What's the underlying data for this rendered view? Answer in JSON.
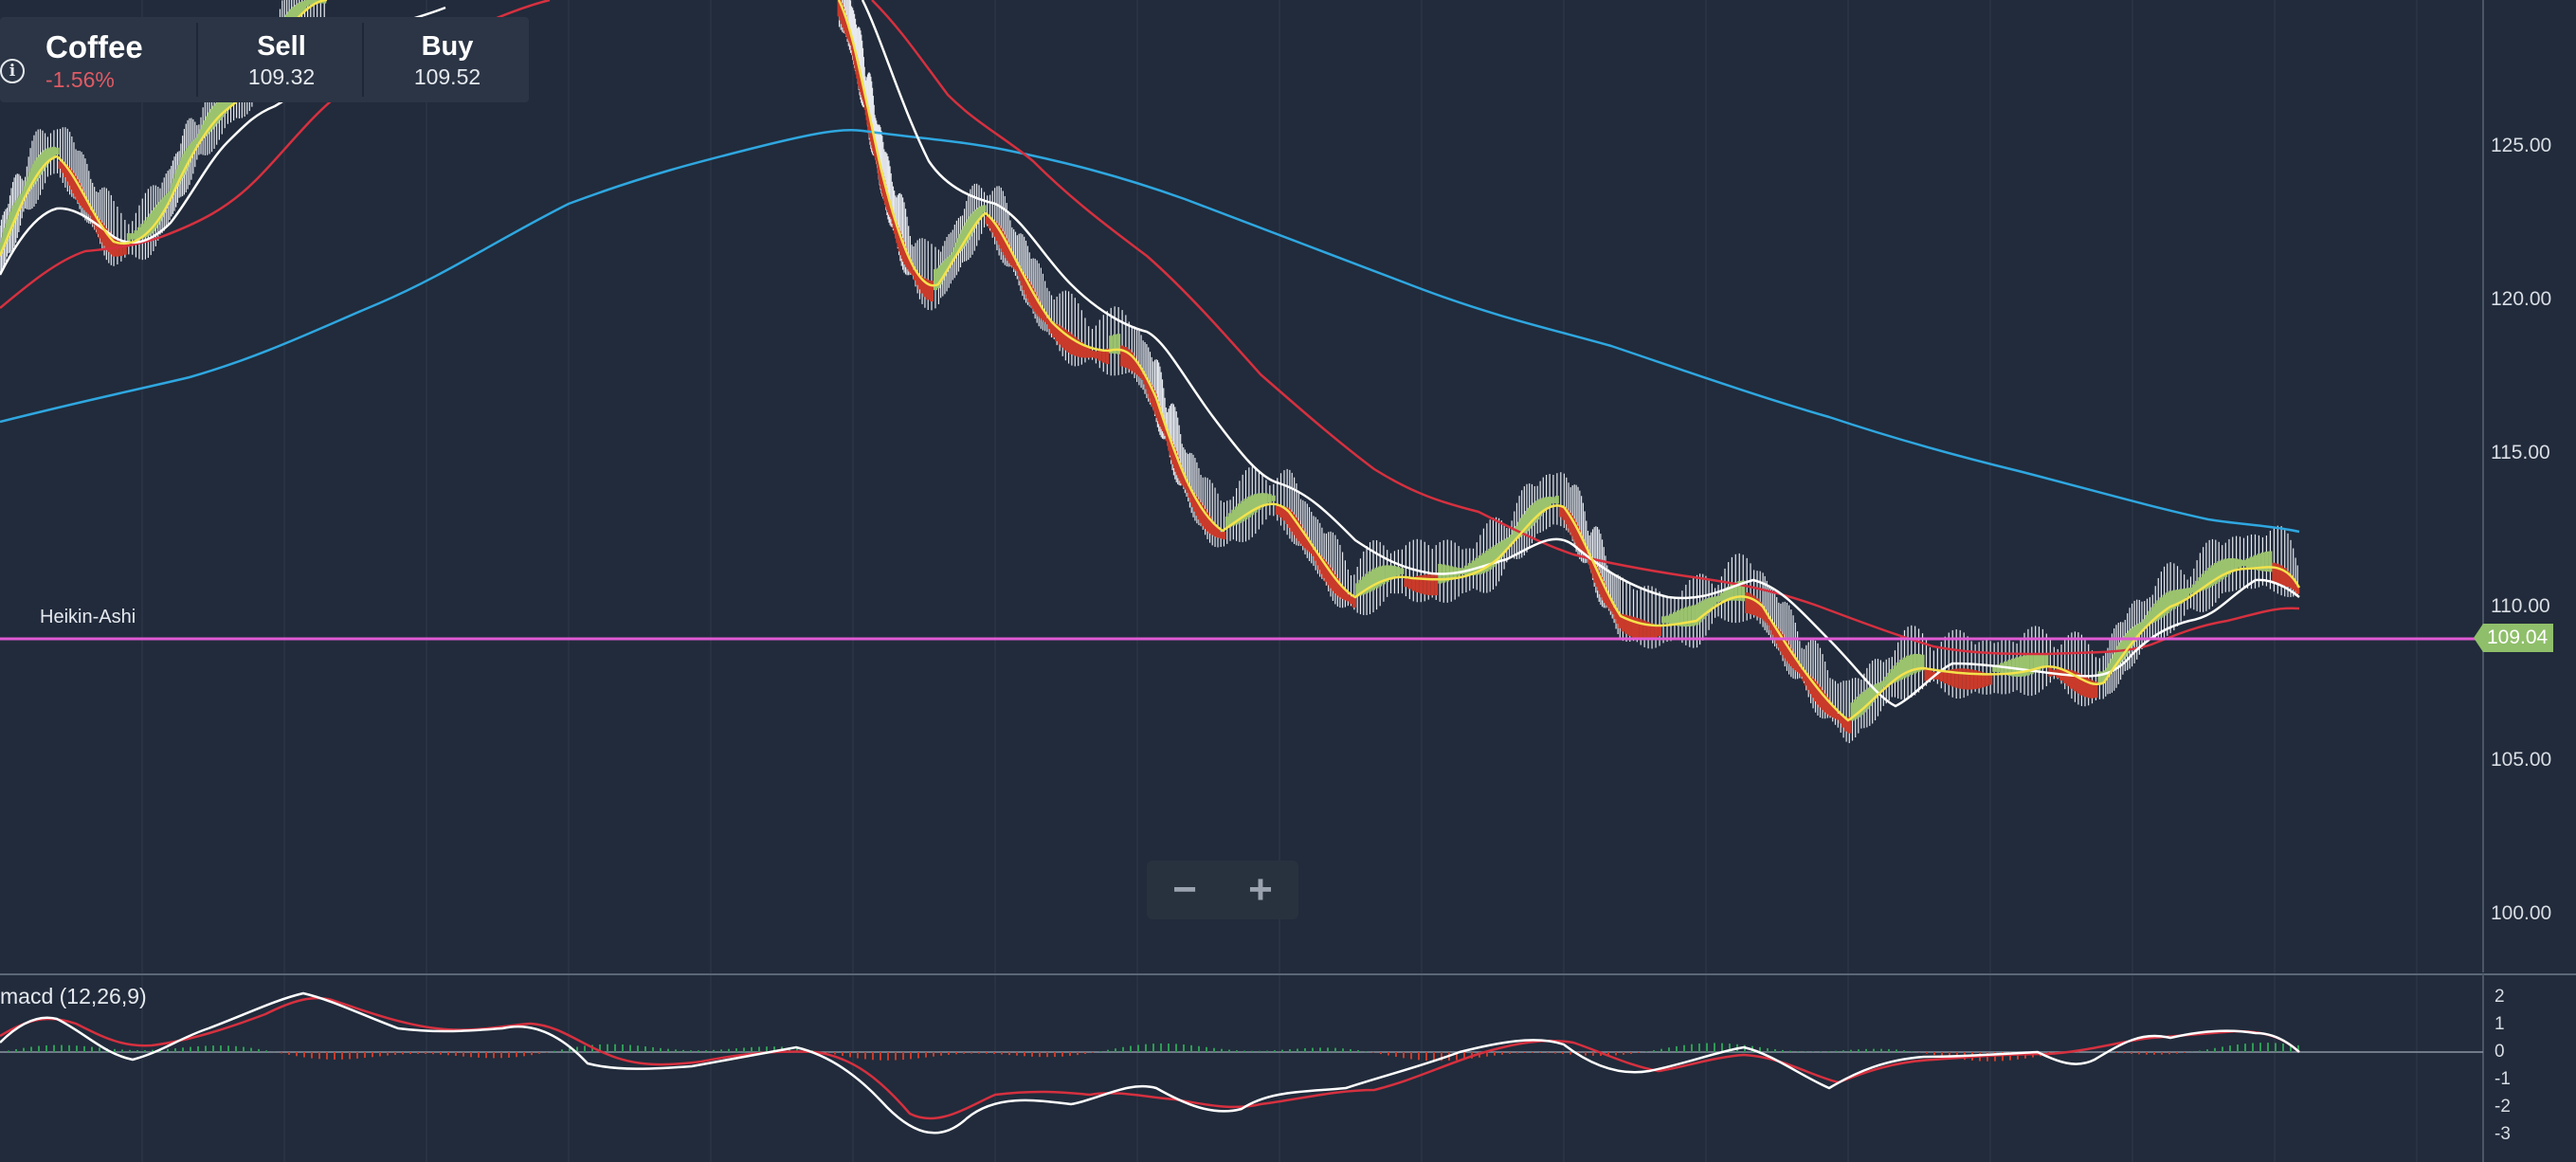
{
  "instrument": {
    "name": "Coffee",
    "change": "-1.56%",
    "sell_label": "Sell",
    "sell_price": "109.32",
    "buy_label": "Buy",
    "buy_price": "109.52"
  },
  "chart": {
    "type_label": "Heikin-Ashi",
    "current_price": "109.04",
    "price_axis": [
      "125.00",
      "120.00",
      "115.00",
      "110.00",
      "105.00",
      "100.00"
    ],
    "indicator_title": "macd (12,26,9)",
    "macd_axis": [
      "2",
      "1",
      "0",
      "-1",
      "-2",
      "-3"
    ]
  },
  "zoom": {
    "minus_label": "−",
    "plus_label": "+"
  },
  "colors": {
    "background": "#212b3b",
    "candle_up": "#9bc36e",
    "candle_down": "#c93a2a",
    "ma_fast": "#f4e24b",
    "ma_mid": "#ffffff",
    "ma_slow": "#d6303f",
    "ma_long": "#2fa7e0",
    "price_line": "#e05ad3",
    "price_tag": "#8fbf6a"
  },
  "chart_data": {
    "type": "line",
    "price_level": 109.04,
    "ylim": [
      97.5,
      130
    ],
    "ma_long_start": 116.0,
    "ma_long_peak": 125.6,
    "ma_long_end": 112.5,
    "price_low": 105.0,
    "price_high_visible": 129.0
  }
}
